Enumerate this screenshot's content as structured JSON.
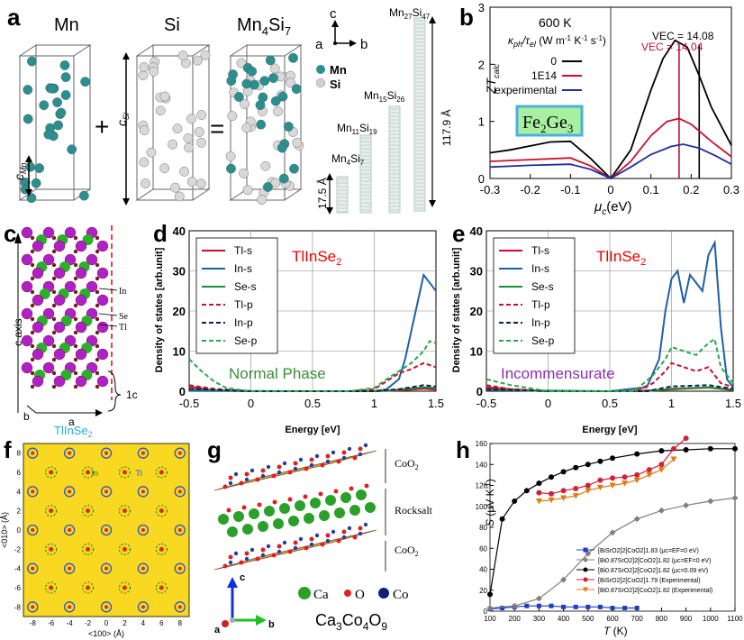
{
  "panel_letters": [
    "a",
    "b",
    "c",
    "d",
    "e",
    "f",
    "g",
    "h"
  ],
  "panel_a": {
    "labels": {
      "mn": "Mn",
      "si": "Si",
      "mn4si7": "Mn4Si7",
      "c": "c",
      "a": "a",
      "b": "b",
      "mn_leg": "Mn",
      "si_leg": "Si",
      "plus": "+",
      "equals": "="
    },
    "c_mn": "c",
    "c_mn_sub": "Mn",
    "c_si": "c",
    "c_si_sub": "Si",
    "length_small": "17.5 Å",
    "length_big": "117.9 Å",
    "phases": [
      {
        "base": "Mn",
        "n1": "4",
        "el": "Si",
        "n2": "7"
      },
      {
        "base": "Mn",
        "n1": "11",
        "el": "Si",
        "n2": "19"
      },
      {
        "base": "Mn",
        "n1": "15",
        "el": "Si",
        "n2": "26"
      },
      {
        "base": "Mn",
        "n1": "27",
        "el": "Si",
        "n2": "47"
      }
    ]
  },
  "chart_data": [
    {
      "id": "b",
      "type": "line",
      "title": "600 K",
      "legend_title": "κph/τel (W m⁻¹ K⁻¹ s⁻¹)",
      "legend_title_parts": {
        "kappa": "κ",
        "kappa_sub": "ph",
        "mid": "/τ",
        "tau_sub": "el",
        "units": " (W m",
        "e1": "-1",
        "k": " K",
        "e2": "-1",
        "s": " s",
        "e3": "-1",
        ")": ")"
      },
      "xlabel": "μc(eV)",
      "xlabel_parts": {
        "mu": "μ",
        "sub": "c",
        "rest": "(eV)"
      },
      "ylabel": "ZTcalc",
      "ylabel_parts": {
        "zt": "ZT",
        "sub": "calc"
      },
      "xlim": [
        -0.3,
        0.3
      ],
      "ylim": [
        0,
        3
      ],
      "xticks": [
        "-0.3",
        "-0.2",
        "-0.1",
        "0",
        "0.1",
        "0.2",
        "0.3"
      ],
      "yticks": [
        "0",
        "1",
        "2",
        "3"
      ],
      "inset_label": "Fe2Ge3",
      "inset_parts": {
        "fe": "Fe",
        "n1": "2",
        "ge": "Ge",
        "n2": "3"
      },
      "annotations": [
        "VEC = 14.08",
        "VEC = 14.04"
      ],
      "vlines": [
        0.17,
        0.22
      ],
      "series": [
        {
          "name": "0",
          "color": "#000000",
          "x": [
            -0.3,
            -0.25,
            -0.2,
            -0.15,
            -0.1,
            -0.05,
            0,
            0.05,
            0.1,
            0.13,
            0.16,
            0.19,
            0.22,
            0.25,
            0.3
          ],
          "y": [
            0.45,
            0.5,
            0.57,
            0.64,
            0.65,
            0.35,
            0.0,
            0.5,
            1.55,
            2.1,
            2.42,
            2.3,
            1.8,
            1.25,
            0.58
          ]
        },
        {
          "name": "1E14",
          "color": "#c8102e",
          "x": [
            -0.3,
            -0.2,
            -0.1,
            -0.05,
            0,
            0.05,
            0.1,
            0.14,
            0.17,
            0.2,
            0.25,
            0.3
          ],
          "y": [
            0.3,
            0.33,
            0.36,
            0.22,
            0.0,
            0.3,
            0.75,
            1.0,
            1.05,
            0.95,
            0.65,
            0.38
          ]
        },
        {
          "name": "experimental",
          "color": "#1f2f9f",
          "x": [
            -0.3,
            -0.2,
            -0.1,
            -0.05,
            0,
            0.05,
            0.1,
            0.15,
            0.18,
            0.22,
            0.26,
            0.3
          ],
          "y": [
            0.2,
            0.23,
            0.25,
            0.16,
            0.0,
            0.2,
            0.42,
            0.56,
            0.6,
            0.53,
            0.4,
            0.25
          ]
        }
      ]
    },
    {
      "id": "d",
      "type": "line",
      "inset_text": "TlInSe2",
      "inset_parts": {
        "main": "TlInSe",
        "sub": "2"
      },
      "phase_label": "Normal Phase",
      "ylabel": "Density of states [arb.unit]",
      "xlabel": "Energy [eV]",
      "xlim": [
        -0.5,
        1.5
      ],
      "ylim": [
        0,
        40
      ],
      "xticks": [
        "-0.5",
        "0",
        "0.5",
        "1",
        "1.5"
      ],
      "yticks": [
        "0",
        "10",
        "20",
        "30",
        "40"
      ],
      "series": [
        {
          "name": "Tl-s",
          "color": "#c8102e",
          "dash": false,
          "x": [
            -0.5,
            -0.4,
            -0.3,
            0,
            0.5,
            1.0,
            1.2,
            1.4,
            1.5
          ],
          "y": [
            1.2,
            0.7,
            0.3,
            0,
            0,
            0,
            0.2,
            0.6,
            0.4
          ]
        },
        {
          "name": "In-s",
          "color": "#1f5fa8",
          "dash": false,
          "x": [
            -0.5,
            0.5,
            1.0,
            1.1,
            1.2,
            1.25,
            1.3,
            1.35,
            1.4,
            1.45,
            1.5
          ],
          "y": [
            0.1,
            0,
            0,
            0.5,
            3,
            8,
            15,
            22,
            29,
            27,
            25
          ]
        },
        {
          "name": "Se-s",
          "color": "#1a8f3a",
          "dash": false,
          "x": [
            -0.5,
            0,
            1.0,
            1.2,
            1.4,
            1.5
          ],
          "y": [
            0.5,
            0,
            0,
            0.4,
            1.0,
            0.8
          ]
        },
        {
          "name": "Tl-p",
          "color": "#c8102e",
          "dash": true,
          "x": [
            -0.5,
            -0.3,
            0,
            0.8,
            1.0,
            1.1,
            1.2,
            1.3,
            1.4,
            1.5
          ],
          "y": [
            1.5,
            0.6,
            0,
            0,
            0.5,
            2.5,
            4.5,
            5.5,
            7,
            6
          ]
        },
        {
          "name": "In-p",
          "color": "#10204f",
          "dash": true,
          "x": [
            -0.5,
            0,
            1.0,
            1.2,
            1.4,
            1.5
          ],
          "y": [
            0.6,
            0,
            0,
            0.5,
            1.5,
            1.2
          ]
        },
        {
          "name": "Se-p",
          "color": "#2aa84a",
          "dash": true,
          "x": [
            -0.5,
            -0.4,
            -0.3,
            -0.2,
            0,
            0.8,
            1.0,
            1.1,
            1.2,
            1.3,
            1.4,
            1.45,
            1.5
          ],
          "y": [
            8,
            5,
            2.5,
            0.8,
            0,
            0,
            0.8,
            3,
            5,
            7,
            10,
            12.5,
            12
          ]
        }
      ]
    },
    {
      "id": "e",
      "type": "line",
      "inset_text": "TlInSe2",
      "inset_parts": {
        "main": "TlInSe",
        "sub": "2"
      },
      "phase_label": "Incommensurate",
      "ylabel": "Density of states [arb.unit]",
      "xlabel": "Energy [eV]",
      "xlim": [
        -0.5,
        1.5
      ],
      "ylim": [
        0,
        40
      ],
      "xticks": [
        "-0.5",
        "0",
        "0.5",
        "1",
        "1.5"
      ],
      "yticks": [
        "0",
        "10",
        "20",
        "30",
        "40"
      ],
      "series": [
        {
          "name": "Tl-s",
          "color": "#c8102e",
          "dash": false,
          "x": [
            -0.5,
            -0.3,
            0,
            0.6,
            0.9,
            1.1,
            1.3,
            1.5
          ],
          "y": [
            1.0,
            0.5,
            0,
            0,
            0.3,
            0.6,
            0.9,
            0.3
          ]
        },
        {
          "name": "In-s",
          "color": "#1f5fa8",
          "dash": false,
          "x": [
            -0.5,
            0.5,
            0.8,
            0.9,
            0.95,
            1.0,
            1.05,
            1.1,
            1.15,
            1.2,
            1.25,
            1.3,
            1.35,
            1.4,
            1.45,
            1.5
          ],
          "y": [
            0.3,
            0,
            1,
            8,
            20,
            28,
            30,
            22,
            29,
            27,
            25,
            34,
            37,
            16,
            3,
            1
          ]
        },
        {
          "name": "Se-s",
          "color": "#1a8f3a",
          "dash": false,
          "x": [
            -0.5,
            0,
            0.8,
            1.0,
            1.3,
            1.5
          ],
          "y": [
            0.5,
            0,
            0,
            0.6,
            1.0,
            0.4
          ]
        },
        {
          "name": "Tl-p",
          "color": "#c8102e",
          "dash": true,
          "x": [
            -0.5,
            -0.3,
            0,
            0.7,
            0.85,
            0.95,
            1.0,
            1.1,
            1.2,
            1.3,
            1.4,
            1.5
          ],
          "y": [
            1.5,
            0.5,
            0,
            0,
            2,
            5,
            7,
            6,
            5,
            6,
            2,
            1
          ]
        },
        {
          "name": "In-p",
          "color": "#10204f",
          "dash": true,
          "x": [
            -0.5,
            0,
            0.8,
            1.0,
            1.3,
            1.5
          ],
          "y": [
            0.5,
            0,
            0,
            1.2,
            1.5,
            0.6
          ]
        },
        {
          "name": "Se-p",
          "color": "#2aa84a",
          "dash": true,
          "x": [
            -0.5,
            -0.3,
            0,
            0.7,
            0.85,
            0.95,
            1.0,
            1.1,
            1.2,
            1.3,
            1.35,
            1.4,
            1.5
          ],
          "y": [
            3,
            1.5,
            0,
            0,
            4,
            8,
            11,
            10,
            9,
            12,
            13,
            6,
            2
          ]
        }
      ]
    },
    {
      "id": "h",
      "type": "line",
      "xlabel": "T (K)",
      "ylabel": "S (μV K⁻¹)",
      "xlabel_parts": {
        "t": "T",
        "rest": " (K)"
      },
      "ylabel_parts": {
        "s": "S",
        "rest": " (μV K",
        "e": "-1",
        ")": ")"
      },
      "xlim": [
        100,
        1100
      ],
      "ylim": [
        0,
        160
      ],
      "xticks": [
        "100",
        "200",
        "300",
        "400",
        "500",
        "600",
        "700",
        "800",
        "900",
        "1000",
        "1100"
      ],
      "yticks": [
        "0",
        "20",
        "40",
        "60",
        "80",
        "100",
        "120",
        "140",
        "160"
      ],
      "series": [
        {
          "name": "[BiSrO2]2[CoO2]1.83 (μc=EF=0 eV)",
          "color": "#1f3fbf",
          "marker": "square",
          "x": [
            100,
            150,
            200,
            250,
            300,
            350,
            400,
            450,
            500,
            550,
            600,
            650,
            700
          ],
          "y": [
            2,
            3,
            4,
            5,
            5,
            5,
            4,
            4,
            4,
            4,
            3,
            3,
            3
          ]
        },
        {
          "name": "[Bi0.87SrO2]2[CoO2]1.82 (μc=EF=0 eV)",
          "color": "#808080",
          "marker": "diamond",
          "x": [
            100,
            200,
            300,
            400,
            500,
            600,
            700,
            800,
            900,
            1000,
            1100
          ],
          "y": [
            3,
            5,
            12,
            30,
            55,
            75,
            88,
            96,
            101,
            105,
            108
          ]
        },
        {
          "name": "[Bi0.87SrO2]2[CoO2]1.82 (μc=0.09 eV)",
          "color": "#000000",
          "marker": "circle",
          "x": [
            100,
            150,
            200,
            250,
            300,
            350,
            400,
            450,
            500,
            550,
            600,
            700,
            800,
            900,
            1000,
            1100
          ],
          "y": [
            16,
            88,
            105,
            115,
            122,
            128,
            133,
            137,
            140,
            143,
            146,
            150,
            153,
            154,
            155,
            155
          ]
        },
        {
          "name": "[BiSrO2]2[CoO2]1.79 (Experimental)",
          "color": "#d0203a",
          "marker": "circle",
          "x": [
            300,
            350,
            400,
            450,
            500,
            550,
            600,
            650,
            700,
            750,
            800,
            850,
            900
          ],
          "y": [
            113,
            112,
            115,
            117,
            120,
            125,
            127,
            128,
            130,
            135,
            140,
            155,
            165
          ]
        },
        {
          "name": "[Bi0.87SrO2]2[CoO2]1.82 (Experimental)",
          "color": "#e07b12",
          "marker": "triangle",
          "x": [
            300,
            350,
            400,
            450,
            500,
            550,
            600,
            650,
            700,
            750,
            800,
            850
          ],
          "y": [
            105,
            106,
            108,
            110,
            115,
            118,
            120,
            122,
            125,
            130,
            135,
            145
          ]
        }
      ]
    }
  ],
  "panel_c": {
    "labels": [
      "In",
      "Se",
      "Tl"
    ],
    "axis": "c axis",
    "b": "b",
    "a": "a",
    "period": "1c",
    "caption": "TlInSe",
    "caption_sub": "2"
  },
  "panel_f": {
    "xlabel": "<100> (Å)",
    "ylabel": "<010> (Å)",
    "xticks": [
      "-8",
      "-6",
      "-4",
      "-2",
      "0",
      "2",
      "4",
      "6",
      "8"
    ],
    "yticks": [
      "-8",
      "-6",
      "-4",
      "-2",
      "0",
      "2",
      "4",
      "6",
      "8"
    ],
    "in": "In",
    "tl": "Tl"
  },
  "panel_g": {
    "layers": [
      "CoO",
      "Rocksalt",
      "CoO"
    ],
    "layer_subs": [
      "2",
      "",
      "2"
    ],
    "legend": [
      "Ca",
      "O",
      "Co"
    ],
    "formula_parts": [
      "Ca",
      "3",
      "Co",
      "4",
      "O",
      "9"
    ],
    "axes": [
      "c",
      "a",
      "b"
    ]
  }
}
